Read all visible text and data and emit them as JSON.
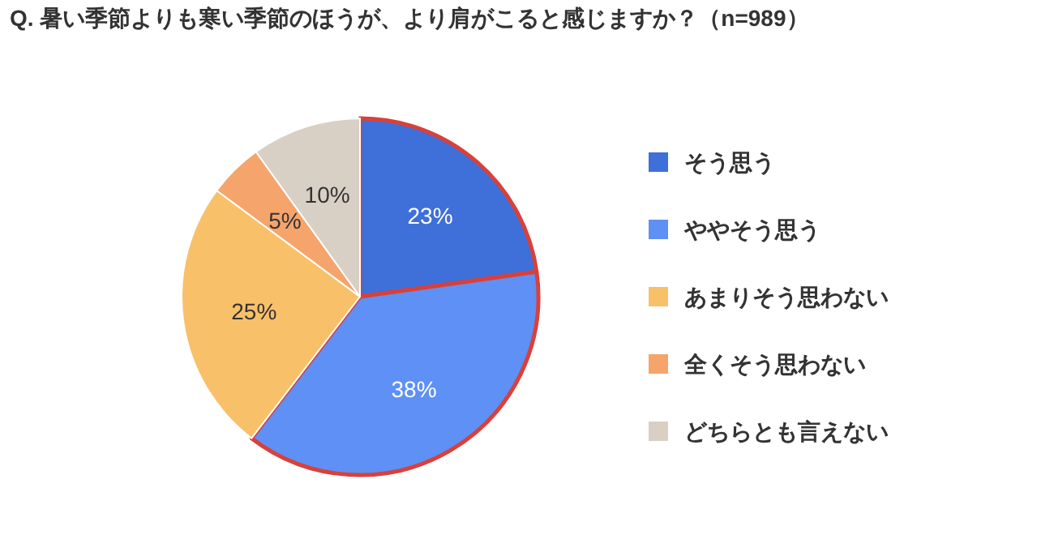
{
  "chart_data": {
    "type": "pie",
    "title": "Q. 暑い季節よりも寒い季節のほうが、より肩がこると感じますか？（n=989）",
    "categories": [
      "そう思う",
      "ややそう思う",
      "あまりそう思わない",
      "全くそう思わない",
      "どちらとも言えない"
    ],
    "values": [
      23,
      38,
      25,
      5,
      10
    ],
    "colors": [
      "#3f6fd8",
      "#5e90f5",
      "#f9c06a",
      "#f5a46b",
      "#d8cfc5"
    ],
    "value_labels": [
      "23%",
      "38%",
      "25%",
      "5%",
      "10%"
    ],
    "legend": "right"
  }
}
